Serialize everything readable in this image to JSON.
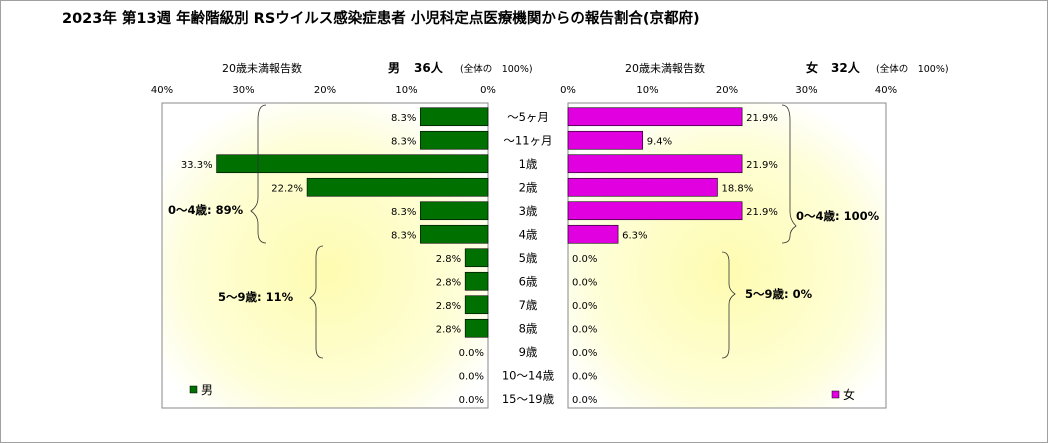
{
  "title": "2023年 第13週 年齢階級別 RSウイルス感染症患者 小児科定点医療機関からの報告割合(京都府)",
  "categories": [
    "〜5ヶ月",
    "〜11ヶ月",
    "1歳",
    "2歳",
    "3歳",
    "4歳",
    "5歳",
    "6歳",
    "7歳",
    "8歳",
    "9歳",
    "10〜14歳",
    "15〜19歳"
  ],
  "axis_ticks": [
    "40%",
    "30%",
    "20%",
    "10%",
    "0%"
  ],
  "axis_ticks_right": [
    "0%",
    "10%",
    "20%",
    "30%",
    "40%"
  ],
  "colors": {
    "male": "#007000",
    "female": "#e000e0",
    "bg_yellow": "#fefdb0"
  },
  "chart_data": [
    {
      "type": "bar",
      "orientation": "horizontal",
      "side": "left",
      "series_name": "男",
      "categories": [
        "〜5ヶ月",
        "〜11ヶ月",
        "1歳",
        "2歳",
        "3歳",
        "4歳",
        "5歳",
        "6歳",
        "7歳",
        "8歳",
        "9歳",
        "10〜14歳",
        "15〜19歳"
      ],
      "values": [
        8.3,
        8.3,
        33.3,
        22.2,
        8.3,
        8.3,
        2.8,
        2.8,
        2.8,
        2.8,
        0.0,
        0.0,
        0.0
      ],
      "value_labels": [
        "8.3%",
        "8.3%",
        "33.3%",
        "22.2%",
        "8.3%",
        "8.3%",
        "2.8%",
        "2.8%",
        "2.8%",
        "2.8%",
        "0.0%",
        "0.0%",
        "0.0%"
      ],
      "xlim": [
        0,
        40
      ],
      "header_left": "20歳未満報告数",
      "header_gender": "男",
      "header_count": "36人",
      "header_total": "(全体の　100%)",
      "group_labels": [
        "0〜4歳: 89%",
        "5〜9歳: 11%"
      ],
      "legend": "男"
    },
    {
      "type": "bar",
      "orientation": "horizontal",
      "side": "right",
      "series_name": "女",
      "categories": [
        "〜5ヶ月",
        "〜11ヶ月",
        "1歳",
        "2歳",
        "3歳",
        "4歳",
        "5歳",
        "6歳",
        "7歳",
        "8歳",
        "9歳",
        "10〜14歳",
        "15〜19歳"
      ],
      "values": [
        21.9,
        9.4,
        21.9,
        18.8,
        21.9,
        6.3,
        0.0,
        0.0,
        0.0,
        0.0,
        0.0,
        0.0,
        0.0
      ],
      "value_labels": [
        "21.9%",
        "9.4%",
        "21.9%",
        "18.8%",
        "21.9%",
        "6.3%",
        "0.0%",
        "0.0%",
        "0.0%",
        "0.0%",
        "0.0%",
        "0.0%",
        "0.0%"
      ],
      "xlim": [
        0,
        40
      ],
      "header_left": "20歳未満報告数",
      "header_gender": "女",
      "header_count": "32人",
      "header_total": "(全体の　100%)",
      "group_labels": [
        "0〜4歳: 100%",
        "5〜9歳: 0%"
      ],
      "legend": "女"
    }
  ]
}
